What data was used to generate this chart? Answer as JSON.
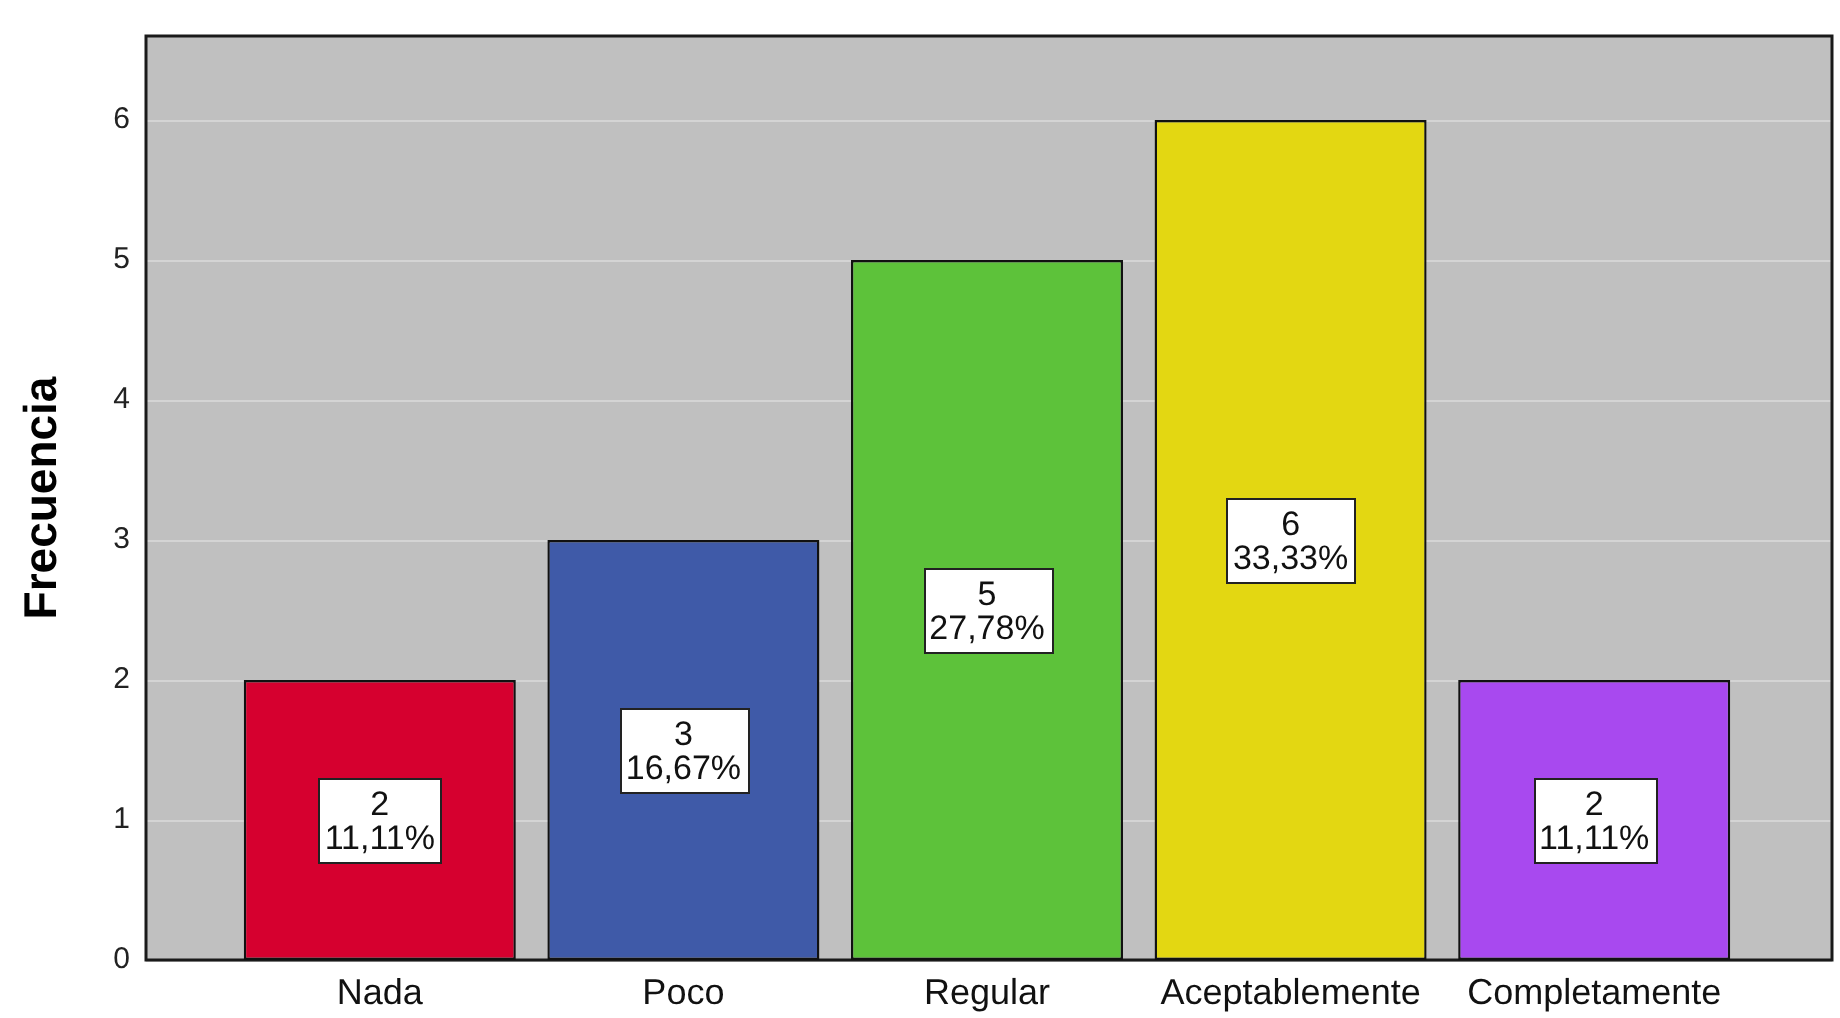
{
  "chart_data": {
    "type": "bar",
    "ylabel": "Frecuencia",
    "categories": [
      "Nada",
      "Poco",
      "Regular",
      "Aceptablemente",
      "Completamente"
    ],
    "values": [
      2,
      3,
      5,
      6,
      2
    ],
    "colors": [
      "#d6002f",
      "#3f5aa8",
      "#5dc23a",
      "#e3d712",
      "#a849ef"
    ],
    "value_labels": [
      "2\n11,11%",
      "3\n16,67%",
      "5\n27,78%",
      "6\n33,33%",
      "2\n11,11%"
    ],
    "ylim": [
      0,
      6.6
    ],
    "yticks": [
      0,
      1,
      2,
      3,
      4,
      5,
      6
    ],
    "grid": "y"
  }
}
